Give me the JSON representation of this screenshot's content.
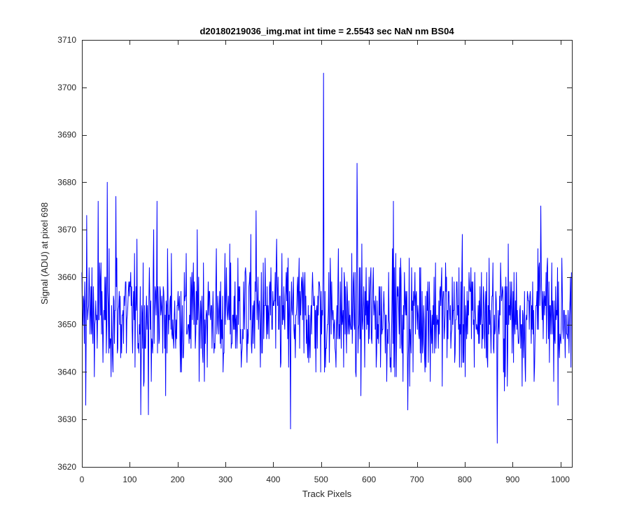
{
  "chart_data": {
    "type": "line",
    "title": "d20180219036_img.mat int time = 2.5543 sec  NaN nm BS04",
    "xlabel": "Track Pixels",
    "ylabel": "Signal (ADU) at pixel 698",
    "xlim": [
      0,
      1024
    ],
    "ylim": [
      3620,
      3710
    ],
    "xticks": [
      0,
      100,
      200,
      300,
      400,
      500,
      600,
      700,
      800,
      900,
      1000
    ],
    "yticks": [
      3620,
      3630,
      3640,
      3650,
      3660,
      3670,
      3680,
      3690,
      3700,
      3710
    ],
    "grid": false,
    "legend": "none",
    "line_color": "#0000ff",
    "series": [
      {
        "n_points": 1024,
        "baseline": 3652,
        "noise_range": [
          3633,
          3677
        ],
        "notable_points": [
          {
            "x": 1,
            "y": 3651
          },
          {
            "x": 8,
            "y": 3633
          },
          {
            "x": 10,
            "y": 3673
          },
          {
            "x": 34,
            "y": 3676
          },
          {
            "x": 53,
            "y": 3680
          },
          {
            "x": 71,
            "y": 3677
          },
          {
            "x": 123,
            "y": 3631
          },
          {
            "x": 139,
            "y": 3631
          },
          {
            "x": 157,
            "y": 3676
          },
          {
            "x": 364,
            "y": 3674
          },
          {
            "x": 436,
            "y": 3628
          },
          {
            "x": 505,
            "y": 3703
          },
          {
            "x": 575,
            "y": 3684
          },
          {
            "x": 651,
            "y": 3676
          },
          {
            "x": 681,
            "y": 3632
          },
          {
            "x": 868,
            "y": 3625
          },
          {
            "x": 959,
            "y": 3675
          },
          {
            "x": 1022,
            "y": 3641
          }
        ]
      }
    ]
  }
}
